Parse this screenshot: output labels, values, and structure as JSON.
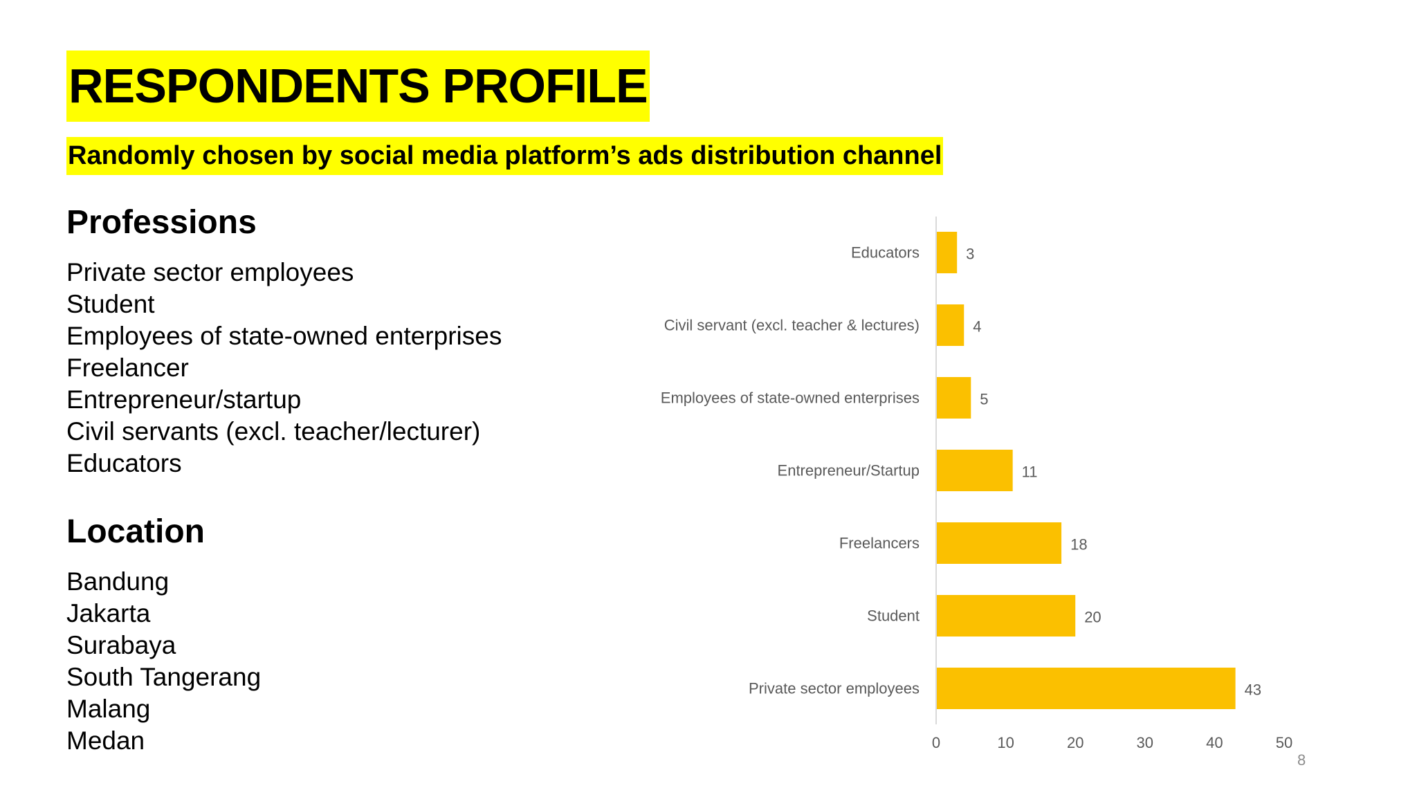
{
  "title": "RESPONDENTS PROFILE",
  "subtitle": "Randomly chosen by social media platform’s ads distribution channel",
  "professions": {
    "heading": "Professions",
    "items": [
      "Private sector employees",
      "Student",
      "Employees of state-owned enterprises",
      "Freelancer",
      "Entrepreneur/startup",
      "Civil servants (excl. teacher/lecturer)",
      "Educators"
    ]
  },
  "location": {
    "heading": "Location",
    "items": [
      "Bandung",
      "Jakarta",
      "Surabaya",
      "South Tangerang",
      "Malang",
      "Medan"
    ]
  },
  "page_number": "8",
  "colors": {
    "highlight": "#ffff00",
    "bar": "#fbc000",
    "axis": "#d9d9d9",
    "label": "#595959"
  },
  "chart_data": {
    "type": "bar",
    "orientation": "horizontal",
    "categories": [
      "Educators",
      "Civil servant (excl. teacher & lectures)",
      "Employees of state-owned enterprises",
      "Entrepreneur/Startup",
      "Freelancers",
      "Student",
      "Private sector employees"
    ],
    "values": [
      3,
      4,
      5,
      11,
      18,
      20,
      43
    ],
    "xlim": [
      0,
      50
    ],
    "xticks": [
      0,
      10,
      20,
      30,
      40,
      50
    ],
    "data_labels": true,
    "grid": false,
    "legend": "none"
  }
}
